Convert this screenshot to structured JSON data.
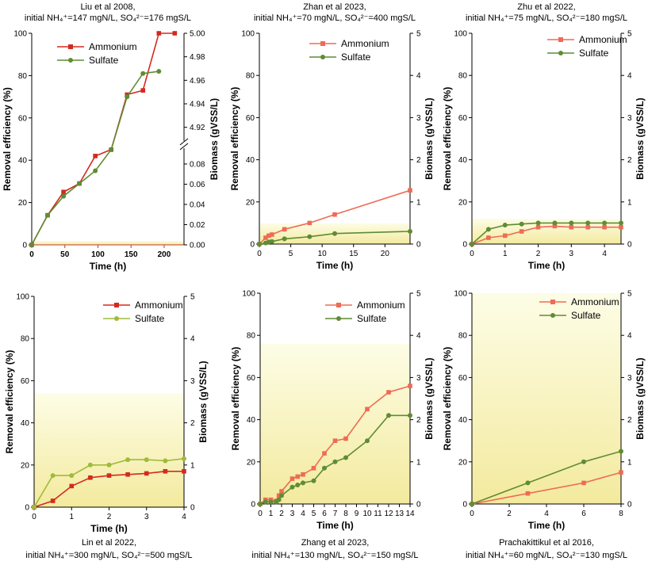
{
  "figure": {
    "colors": {
      "ammonium_strong": "#d42a1e",
      "ammonium_light": "#ef6b55",
      "sulfate_strong": "#5f8c34",
      "sulfate_light": "#9fbb3a",
      "biomass_fill_top": "#fdfde6",
      "biomass_fill_bottom": "#f3ea9e",
      "liu_time_axis": "#c0392b"
    }
  },
  "chart_data": [
    {
      "type": "line",
      "title_line1": "Liu et al 2008,",
      "title_line2": "initial NH₄⁺=147 mgN/L, SO₄²⁻=176 mgS/L",
      "title_position": "top",
      "xlabel": "Time (h)",
      "ylabel": "Removal efficiency (%)",
      "y2label": "Biomass (gVSS/L)",
      "xlim": [
        0,
        230
      ],
      "ylim": [
        0,
        100
      ],
      "xticks": [
        "0",
        "50",
        "100",
        "150",
        "200"
      ],
      "xtick_values": [
        0,
        50,
        100,
        150,
        200
      ],
      "yticks": [
        "0",
        "20",
        "40",
        "60",
        "80",
        "100"
      ],
      "y2_broken": true,
      "y2_lower_range": [
        0,
        0.09
      ],
      "y2_lower_ticks": [
        "0.00",
        "0.02",
        "0.04",
        "0.06",
        "0.08"
      ],
      "y2_upper_range": [
        4.91,
        5.0
      ],
      "y2_upper_ticks": [
        "4.92",
        "4.94",
        "4.96",
        "4.98",
        "5.00"
      ],
      "biomass_band": [
        0.0,
        0.002
      ],
      "series": [
        {
          "name": "Ammonium",
          "color_key": "ammonium_strong",
          "marker": "square",
          "x": [
            0,
            24,
            48,
            72,
            96,
            120,
            144,
            168,
            192,
            216
          ],
          "y": [
            0,
            14,
            25,
            29,
            42,
            45,
            71,
            73,
            100,
            100
          ]
        },
        {
          "name": "Sulfate",
          "color_key": "sulfate_strong",
          "marker": "circle",
          "x": [
            0,
            24,
            48,
            72,
            96,
            120,
            144,
            168,
            192
          ],
          "y": [
            0,
            14,
            23,
            29,
            35,
            45,
            70,
            81,
            82
          ]
        }
      ]
    },
    {
      "type": "line",
      "title_line1": "Zhan et al 2023,",
      "title_line2": "initial NH₄⁺=70 mgN/L, SO₄²⁻=400 mgS/L",
      "title_position": "top",
      "xlabel": "Time (h)",
      "ylabel": "Removal efficiency (%)",
      "y2label": "Biomass (gVSS/L)",
      "xlim": [
        0,
        24
      ],
      "ylim": [
        0,
        100
      ],
      "xticks": [
        "0",
        "5",
        "10",
        "15",
        "20"
      ],
      "xtick_values": [
        0,
        5,
        10,
        15,
        20
      ],
      "yticks": [
        "0",
        "20",
        "40",
        "60",
        "80",
        "100"
      ],
      "y2lim": [
        0,
        5
      ],
      "y2ticks": [
        "0",
        "1",
        "2",
        "3",
        "4",
        "5"
      ],
      "biomass_band": [
        0,
        0.5
      ],
      "series": [
        {
          "name": "Ammonium",
          "color_key": "ammonium_light",
          "marker": "square",
          "x": [
            0,
            1,
            1.5,
            2,
            4,
            8,
            12,
            24
          ],
          "y": [
            0,
            3,
            4,
            4.5,
            7,
            10,
            14,
            25.5
          ]
        },
        {
          "name": "Sulfate",
          "color_key": "sulfate_strong",
          "marker": "circle",
          "x": [
            0,
            1,
            1.5,
            2,
            4,
            8,
            12,
            24
          ],
          "y": [
            0,
            0.5,
            1,
            1.2,
            2.5,
            3.5,
            5,
            6
          ]
        }
      ]
    },
    {
      "type": "line",
      "title_line1": "Zhu et al 2022,",
      "title_line2": "initial NH₄⁺=75 mgN/L, SO₄²⁻=180 mgS/L",
      "title_position": "top",
      "xlabel": "Time (h)",
      "ylabel": "Removal efficiency (%)",
      "y2label": "Biomass (gVSS/L)",
      "xlim": [
        0,
        4.5
      ],
      "ylim": [
        0,
        100
      ],
      "xticks": [
        "0",
        "1",
        "2",
        "3",
        "4"
      ],
      "xtick_values": [
        0,
        1,
        2,
        3,
        4
      ],
      "yticks": [
        "0",
        "20",
        "40",
        "60",
        "80",
        "100"
      ],
      "y2lim": [
        0,
        5
      ],
      "y2ticks": [
        "0",
        "1",
        "2",
        "3",
        "4",
        "5"
      ],
      "biomass_band": [
        0,
        0.6
      ],
      "series": [
        {
          "name": "Ammonium",
          "color_key": "ammonium_light",
          "marker": "square",
          "x": [
            0,
            0.5,
            1,
            1.5,
            2,
            2.5,
            3,
            3.5,
            4,
            4.5
          ],
          "y": [
            0,
            3,
            4,
            6,
            8,
            8.5,
            8,
            8,
            8,
            8
          ]
        },
        {
          "name": "Sulfate",
          "color_key": "sulfate_strong",
          "marker": "circle",
          "x": [
            0,
            0.5,
            1,
            1.5,
            2,
            2.5,
            3,
            3.5,
            4,
            4.5
          ],
          "y": [
            0,
            7,
            9,
            9.5,
            10,
            10,
            10,
            10,
            10,
            10
          ]
        }
      ]
    },
    {
      "type": "line",
      "title_line1": "Lin et al 2022,",
      "title_line2": "initial NH₄⁺=300 mgN/L, SO₄²⁻=500 mgS/L",
      "title_position": "bottom",
      "xlabel": "Time (h)",
      "ylabel": "Removal efficiency (%)",
      "y2label": "Biomass (gVSS/L)",
      "xlim": [
        0,
        4
      ],
      "ylim": [
        0,
        100
      ],
      "xticks": [
        "0",
        "1",
        "2",
        "3",
        "4"
      ],
      "xtick_values": [
        0,
        1,
        2,
        3,
        4
      ],
      "yticks": [
        "0",
        "20",
        "40",
        "60",
        "80",
        "100"
      ],
      "y2lim": [
        0,
        5
      ],
      "y2ticks": [
        "0",
        "1",
        "2",
        "3",
        "4",
        "5"
      ],
      "biomass_band": [
        0,
        2.7
      ],
      "series": [
        {
          "name": "Ammonium",
          "color_key": "ammonium_strong",
          "marker": "square",
          "x": [
            0,
            0.5,
            1,
            1.5,
            2,
            2.5,
            3,
            3.5,
            4
          ],
          "y": [
            0,
            3,
            10,
            14,
            15,
            15.5,
            16,
            17,
            17
          ]
        },
        {
          "name": "Sulfate",
          "color_key": "sulfate_light",
          "marker": "circle",
          "x": [
            0,
            0.5,
            1,
            1.5,
            2,
            2.5,
            3,
            3.5,
            4
          ],
          "y": [
            0,
            15,
            15,
            20,
            20,
            22.5,
            22.5,
            22,
            23
          ]
        }
      ]
    },
    {
      "type": "line",
      "title_line1": "Zhang et al 2023,",
      "title_line2": "initial NH₄⁺=130 mgN/L, SO₄²⁻=150 mgS/L",
      "title_position": "bottom",
      "xlabel": "Time (h)",
      "ylabel": "Removal efficiency (%)",
      "y2label": "Biomass (gVSS/L)",
      "xlim": [
        0,
        14
      ],
      "ylim": [
        0,
        100
      ],
      "xticks": [
        "0",
        "1",
        "2",
        "3",
        "4",
        "5",
        "6",
        "7",
        "8",
        "9",
        "10",
        "11",
        "12",
        "13",
        "14"
      ],
      "xtick_values": [
        0,
        1,
        2,
        3,
        4,
        5,
        6,
        7,
        8,
        9,
        10,
        11,
        12,
        13,
        14
      ],
      "yticks": [
        "0",
        "20",
        "40",
        "60",
        "80",
        "100"
      ],
      "y2lim": [
        0,
        5
      ],
      "y2ticks": [
        "0",
        "1",
        "2",
        "3",
        "4",
        "5"
      ],
      "biomass_band": [
        0,
        3.8
      ],
      "series": [
        {
          "name": "Ammonium",
          "color_key": "ammonium_light",
          "marker": "square",
          "x": [
            0,
            0.5,
            1,
            1.5,
            1.75,
            2,
            3,
            3.5,
            4,
            5,
            6,
            7,
            8,
            10,
            12,
            14
          ],
          "y": [
            0,
            2,
            2,
            1.5,
            4,
            6,
            12,
            13,
            14,
            17,
            24,
            30,
            31,
            45,
            53,
            56
          ]
        },
        {
          "name": "Sulfate",
          "color_key": "sulfate_strong",
          "marker": "circle",
          "x": [
            0,
            0.5,
            1,
            1.5,
            1.75,
            2,
            3,
            3.5,
            4,
            5,
            6,
            7,
            8,
            10,
            12,
            14
          ],
          "y": [
            0,
            1,
            1,
            1,
            2,
            4,
            8,
            9,
            10,
            11,
            17,
            20,
            22,
            30,
            42,
            42
          ]
        }
      ]
    },
    {
      "type": "line",
      "title_line1": "Prachakittikul et al 2016,",
      "title_line2": "initial NH₄⁺=60 mgN/L, SO₄²⁻=130 mgS/L",
      "title_position": "bottom",
      "xlabel": "Time (h)",
      "ylabel": "Removal efficiency (%)",
      "y2label": "Biomass (gVSS/L)",
      "xlim": [
        0,
        8
      ],
      "ylim": [
        0,
        100
      ],
      "xticks": [
        "0",
        "2",
        "4",
        "6",
        "8"
      ],
      "xtick_values": [
        0,
        2,
        4,
        6,
        8
      ],
      "yticks": [
        "0",
        "20",
        "40",
        "60",
        "80",
        "100"
      ],
      "y2lim": [
        0,
        5
      ],
      "y2ticks": [
        "0",
        "1",
        "2",
        "3",
        "4",
        "5"
      ],
      "biomass_band": [
        0,
        5
      ],
      "series": [
        {
          "name": "Ammonium",
          "color_key": "ammonium_light",
          "marker": "square",
          "x": [
            0,
            3,
            6,
            8
          ],
          "y": [
            0,
            5,
            10,
            15
          ]
        },
        {
          "name": "Sulfate",
          "color_key": "sulfate_strong",
          "marker": "circle",
          "x": [
            0,
            3,
            6,
            8
          ],
          "y": [
            0,
            10,
            20,
            25
          ]
        }
      ]
    }
  ]
}
